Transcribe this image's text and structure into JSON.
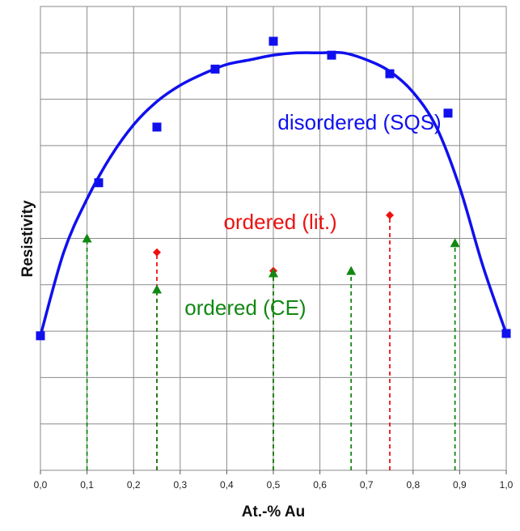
{
  "chart_data": {
    "type": "scatter",
    "title": "",
    "xlabel": "At.-% Au",
    "ylabel": "Resistivity",
    "xlim": [
      0,
      1
    ],
    "ylim": [
      0,
      10
    ],
    "grid": true,
    "x_tick_labels": [
      "0,0",
      "0,1",
      "0,2",
      "0,3",
      "0,4",
      "0,5",
      "0,6",
      "0,7",
      "0,8",
      "0,9",
      "1,0"
    ],
    "x_ticks": [
      0,
      0.1,
      0.2,
      0.3,
      0.4,
      0.5,
      0.6,
      0.7,
      0.8,
      0.9,
      1.0
    ],
    "y_ticks": [
      0,
      1,
      2,
      3,
      4,
      5,
      6,
      7,
      8,
      9,
      10
    ],
    "series": [
      {
        "label": "disordered (SQS)",
        "kind": "square-markers",
        "color": "#1010ee",
        "x": [
          0.0,
          0.125,
          0.25,
          0.375,
          0.5,
          0.625,
          0.75,
          0.875,
          1.0
        ],
        "y": [
          2.9,
          6.2,
          7.4,
          8.65,
          9.25,
          8.95,
          8.55,
          7.7,
          2.95
        ]
      },
      {
        "label": "disordered (SQS)",
        "kind": "fit-curve",
        "color": "#1010ee",
        "x": [
          0.0,
          0.05,
          0.1,
          0.15,
          0.2,
          0.25,
          0.3,
          0.35,
          0.4,
          0.45,
          0.5,
          0.55,
          0.6,
          0.65,
          0.7,
          0.75,
          0.8,
          0.85,
          0.9,
          0.95,
          1.0
        ],
        "y": [
          2.9,
          4.7,
          5.85,
          6.75,
          7.45,
          7.95,
          8.3,
          8.55,
          8.75,
          8.85,
          8.95,
          9.0,
          9.0,
          9.0,
          8.85,
          8.6,
          8.15,
          7.4,
          6.1,
          4.4,
          2.95
        ]
      },
      {
        "label": "ordered (lit.)",
        "kind": "diamond-stems",
        "color": "#ee1111",
        "x": [
          0.25,
          0.5,
          0.75
        ],
        "y": [
          4.7,
          4.3,
          5.5
        ]
      },
      {
        "label": "ordered (CE)",
        "kind": "triangle-stems",
        "color": "#118811",
        "x": [
          0.1,
          0.25,
          0.5,
          0.667,
          0.89
        ],
        "y": [
          5.0,
          3.9,
          4.25,
          4.3,
          4.9
        ]
      }
    ],
    "annotations": [
      {
        "text": "disordered (SQS)",
        "color": "#1010ee",
        "x": 0.685,
        "y": 7.35
      },
      {
        "text": "ordered (lit.)",
        "color": "#ee1111",
        "x": 0.515,
        "y": 5.2
      },
      {
        "text": "ordered (CE)",
        "color": "#118811",
        "x": 0.44,
        "y": 3.35
      }
    ]
  }
}
